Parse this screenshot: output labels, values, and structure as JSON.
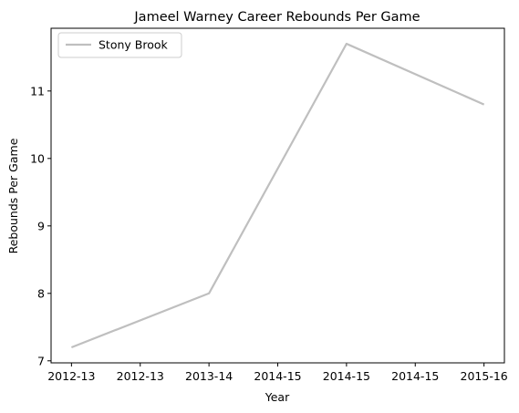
{
  "chart_data": {
    "type": "line",
    "title": "Jameel Warney Career Rebounds Per Game",
    "xlabel": "Year",
    "ylabel": "Rebounds Per Game",
    "x_tick_labels": [
      "2012-13",
      "2012-13",
      "2013-14",
      "2014-15",
      "2014-15",
      "2014-15",
      "2015-16"
    ],
    "y_ticks": [
      7,
      8,
      9,
      10,
      11
    ],
    "ylim": [
      6.97,
      11.93
    ],
    "x": [
      "2012-13",
      "2013-14",
      "2014-15",
      "2015-16"
    ],
    "series": [
      {
        "name": "Stony Brook",
        "values": [
          7.2,
          8.0,
          11.7,
          10.8
        ],
        "color": "#bfbfbf"
      }
    ],
    "legend": "top-left",
    "grid": false
  }
}
